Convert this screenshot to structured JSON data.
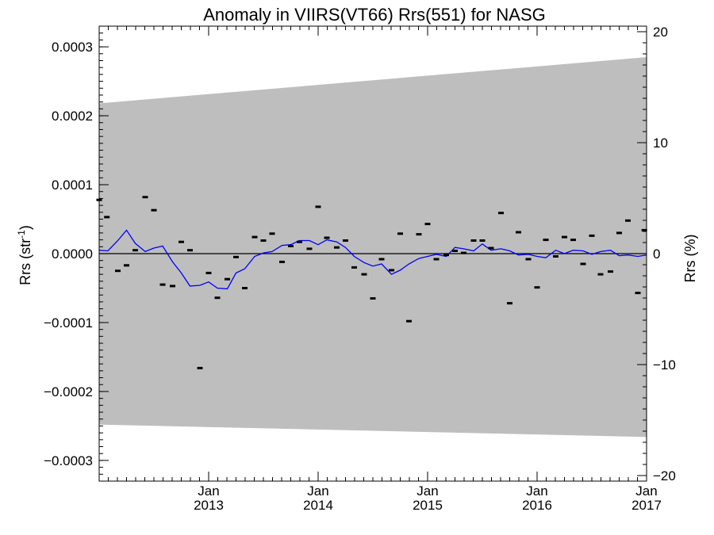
{
  "chart_data": {
    "type": "line",
    "title": "Anomaly in VIIRS(VT66) Rrs(551) for NASG",
    "ylabel_left": "Rrs (str",
    "ylabel_left_sup": "-1",
    "ylabel_left_end": ")",
    "ylabel_right": "Rrs (%)",
    "xlim": [
      2012.0,
      2017.0
    ],
    "ylim_left": [
      -0.00033,
      0.00033
    ],
    "ylim_right": [
      -20.5,
      20.5
    ],
    "x_ticks": [
      {
        "value": 2013.0,
        "month": "Jan",
        "year": "2013"
      },
      {
        "value": 2014.0,
        "month": "Jan",
        "year": "2014"
      },
      {
        "value": 2015.0,
        "month": "Jan",
        "year": "2015"
      },
      {
        "value": 2016.0,
        "month": "Jan",
        "year": "2016"
      },
      {
        "value": 2017.0,
        "month": "Jan",
        "year": "2017"
      }
    ],
    "y_ticks_left": [
      {
        "value": 0.0003,
        "label": "0.0003"
      },
      {
        "value": 0.0002,
        "label": "0.0002"
      },
      {
        "value": 0.0001,
        "label": "0.0001"
      },
      {
        "value": 0.0,
        "label": "0.0000"
      },
      {
        "value": -0.0001,
        "label": "−0.0001"
      },
      {
        "value": -0.0002,
        "label": "−0.0002"
      },
      {
        "value": -0.0003,
        "label": "−0.0003"
      }
    ],
    "y_ticks_right": [
      {
        "value": 20,
        "label": "20"
      },
      {
        "value": 10,
        "label": "10"
      },
      {
        "value": 0,
        "label": "0"
      },
      {
        "value": -10,
        "label": "−10"
      },
      {
        "value": -20,
        "label": "−20"
      }
    ],
    "uncertainty_band": {
      "x": [
        2012.0,
        2017.0
      ],
      "upper": [
        0.000218,
        0.000285
      ],
      "lower": [
        -0.000248,
        -0.000266
      ],
      "color": "#bebebe"
    },
    "zero_line": 0.0,
    "series": [
      {
        "kind": "markers",
        "color": "#000000",
        "x": [
          2012.0,
          2012.07,
          2012.17,
          2012.25,
          2012.33,
          2012.42,
          2012.5,
          2012.58,
          2012.67,
          2012.75,
          2012.83,
          2012.92,
          2013.0,
          2013.08,
          2013.17,
          2013.25,
          2013.33,
          2013.42,
          2013.5,
          2013.58,
          2013.67,
          2013.75,
          2013.83,
          2013.92,
          2014.0,
          2014.08,
          2014.17,
          2014.25,
          2014.33,
          2014.42,
          2014.5,
          2014.58,
          2014.67,
          2014.75,
          2014.83,
          2014.92,
          2015.0,
          2015.08,
          2015.17,
          2015.25,
          2015.33,
          2015.42,
          2015.5,
          2015.58,
          2015.67,
          2015.75,
          2015.83,
          2015.92,
          2016.0,
          2016.08,
          2016.17,
          2016.25,
          2016.33,
          2016.42,
          2016.5,
          2016.58,
          2016.67,
          2016.75,
          2016.83,
          2016.92,
          2016.98
        ],
        "values": [
          7.8e-05,
          5.3e-05,
          -2.5e-05,
          -1.7e-05,
          5e-06,
          8.2e-05,
          6.3e-05,
          -4.5e-05,
          -4.7e-05,
          1.7e-05,
          5e-06,
          -0.000166,
          -2.8e-05,
          -6.4e-05,
          -3.7e-05,
          -5e-06,
          -5e-05,
          2.4e-05,
          1.9e-05,
          2.9e-05,
          -1.2e-05,
          1.1e-05,
          1.7e-05,
          7e-06,
          6.8e-05,
          2.3e-05,
          9e-06,
          1.9e-05,
          -2e-05,
          -3e-05,
          -6.5e-05,
          -8e-06,
          -2.4e-05,
          2.9e-05,
          -9.8e-05,
          2.8e-05,
          4.3e-05,
          -8e-06,
          -2e-06,
          4e-06,
          1e-06,
          1.9e-05,
          1.9e-05,
          8e-06,
          5.9e-05,
          -7.2e-05,
          3.1e-05,
          -8e-06,
          -4.9e-05,
          2e-05,
          -4e-06,
          2.4e-05,
          2e-05,
          -1.5e-05,
          2.6e-05,
          -3e-05,
          -2.6e-05,
          3e-05,
          4.8e-05,
          -5.7e-05,
          3.4e-05
        ]
      },
      {
        "kind": "line",
        "color": "#0000ff",
        "x": [
          2012.0,
          2012.08,
          2012.17,
          2012.25,
          2012.33,
          2012.42,
          2012.5,
          2012.58,
          2012.67,
          2012.75,
          2012.83,
          2012.92,
          2013.0,
          2013.08,
          2013.17,
          2013.25,
          2013.33,
          2013.42,
          2013.5,
          2013.58,
          2013.67,
          2013.75,
          2013.83,
          2013.92,
          2014.0,
          2014.08,
          2014.17,
          2014.25,
          2014.33,
          2014.42,
          2014.5,
          2014.58,
          2014.67,
          2014.75,
          2014.83,
          2014.92,
          2015.0,
          2015.08,
          2015.17,
          2015.25,
          2015.33,
          2015.42,
          2015.5,
          2015.58,
          2015.67,
          2015.75,
          2015.83,
          2015.92,
          2016.0,
          2016.08,
          2016.17,
          2016.25,
          2016.33,
          2016.42,
          2016.5,
          2016.58,
          2016.67,
          2016.75,
          2016.83,
          2016.92,
          2017.0
        ],
        "values": [
          5e-06,
          4e-06,
          1.9e-05,
          3.4e-05,
          1.5e-05,
          3e-06,
          8e-06,
          1.1e-05,
          -1.2e-05,
          -2.8e-05,
          -4.7e-05,
          -4.6e-05,
          -4.1e-05,
          -5e-05,
          -5.1e-05,
          -2.8e-05,
          -2.2e-05,
          -4e-06,
          1e-06,
          3e-06,
          1.2e-05,
          1.3e-05,
          1.9e-05,
          1.9e-05,
          1.3e-05,
          2e-05,
          1.7e-05,
          9e-06,
          -4e-06,
          -1.3e-05,
          -1.8e-05,
          -1.5e-05,
          -3e-05,
          -2.4e-05,
          -1.5e-05,
          -7e-06,
          -4e-06,
          -1e-06,
          -4e-06,
          9e-06,
          7e-06,
          4e-06,
          1.4e-05,
          5e-06,
          7e-06,
          4e-06,
          -2e-06,
          -1e-06,
          -4e-06,
          -6e-06,
          5e-06,
          0.0,
          5e-06,
          4e-06,
          -1e-06,
          3e-06,
          5e-06,
          -3e-06,
          -2e-06,
          -4e-06,
          -2e-06
        ]
      }
    ]
  }
}
